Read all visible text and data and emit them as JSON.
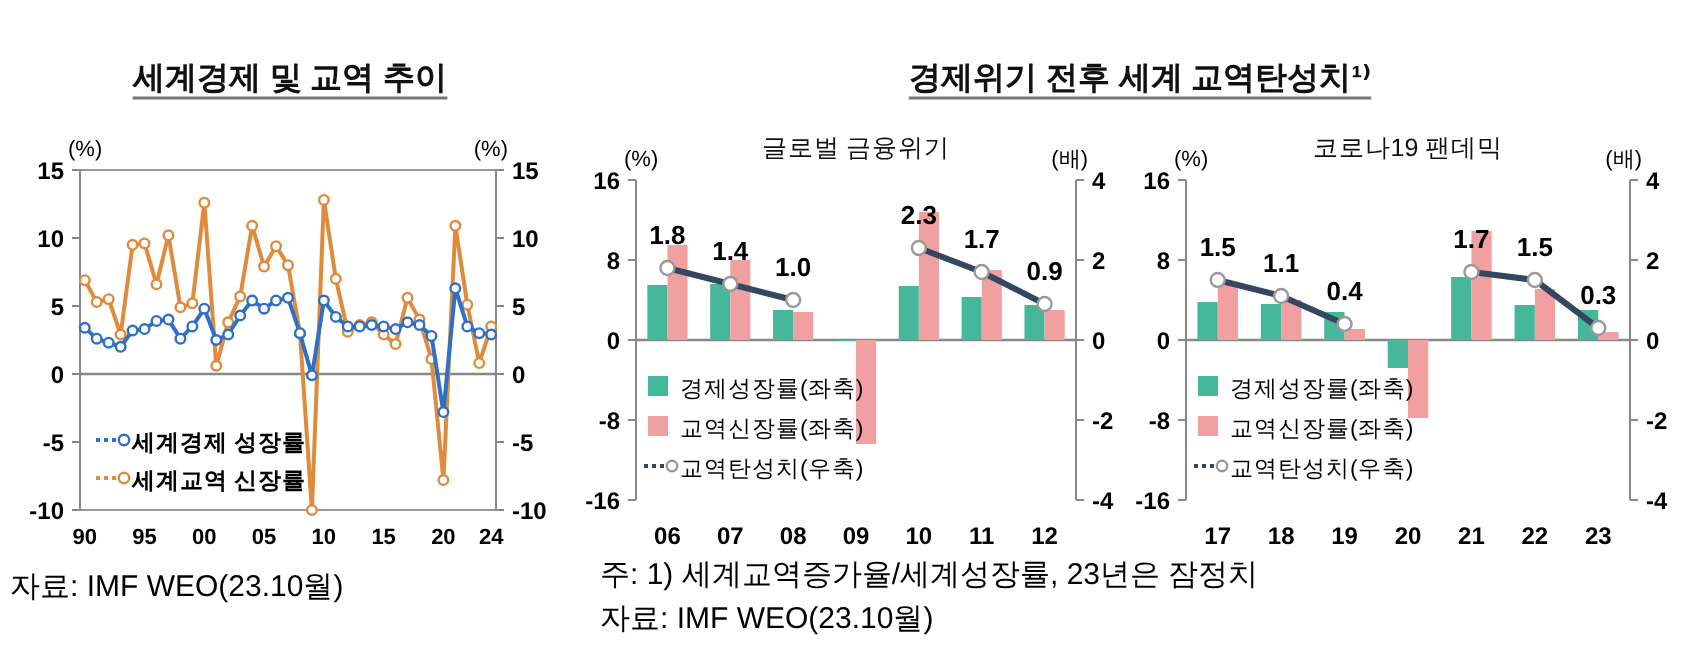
{
  "chart_data": [
    {
      "type": "line",
      "title": "세계경제 및 교역 추이",
      "ylabel": "(%)",
      "y2label": "(%)",
      "marker": "circle",
      "legend": "bottom left",
      "x": [
        1990,
        1991,
        1992,
        1993,
        1994,
        1995,
        1996,
        1997,
        1998,
        1999,
        2000,
        2001,
        2002,
        2003,
        2004,
        2005,
        2006,
        2007,
        2008,
        2009,
        2010,
        2011,
        2012,
        2013,
        2014,
        2015,
        2016,
        2017,
        2018,
        2019,
        2020,
        2021,
        2022,
        2023,
        2024
      ],
      "series": [
        {
          "name": "세계경제 성장률",
          "color": "#2f6fc4",
          "values": [
            3.4,
            2.6,
            2.3,
            2.0,
            3.2,
            3.3,
            3.9,
            4.0,
            2.6,
            3.5,
            4.8,
            2.5,
            2.9,
            4.3,
            5.4,
            4.8,
            5.4,
            5.6,
            3.0,
            -0.1,
            5.4,
            4.2,
            3.5,
            3.5,
            3.6,
            3.5,
            3.3,
            3.8,
            3.6,
            2.8,
            -2.8,
            6.3,
            3.5,
            3.0,
            2.9
          ]
        },
        {
          "name": "세계교역 신장률",
          "color": "#e08a3c",
          "values": [
            6.9,
            5.3,
            5.5,
            2.9,
            9.5,
            9.6,
            6.6,
            10.2,
            4.9,
            5.2,
            12.6,
            0.6,
            3.8,
            5.7,
            10.9,
            7.9,
            9.4,
            8.0,
            3.0,
            -10,
            12.8,
            7.0,
            3.1,
            3.6,
            3.8,
            2.9,
            2.2,
            5.6,
            4.0,
            1.1,
            -7.8,
            10.9,
            5.1,
            0.8,
            3.5
          ]
        }
      ],
      "xlim": [
        1989.6,
        2024.4
      ],
      "xticks": [
        {
          "value": 1990,
          "label": "90"
        },
        {
          "value": 1995,
          "label": "95"
        },
        {
          "value": 2000,
          "label": "00"
        },
        {
          "value": 2005,
          "label": "05"
        },
        {
          "value": 2010,
          "label": "10"
        },
        {
          "value": 2015,
          "label": "15"
        },
        {
          "value": 2020,
          "label": "20"
        },
        {
          "value": 2024,
          "label": "24"
        }
      ],
      "ylim": [
        -10,
        15
      ],
      "yticks": [
        -10,
        -5,
        0,
        5,
        10,
        15
      ],
      "y2lim": [
        -10,
        15
      ],
      "y2ticks": [
        -10,
        -5,
        0,
        5,
        10,
        15
      ],
      "annotations": [
        "자료: IMF WEO(23.10월)"
      ]
    },
    {
      "type": "bar",
      "title": "경제위기 전후 세계 교역탄성치¹⁾",
      "subtitle": "글로벌 금융위기",
      "ylabel": "(%)",
      "y2label": "(배)",
      "legend": "bottom left",
      "categories": [
        "06",
        "07",
        "08",
        "09",
        "10",
        "11",
        "12"
      ],
      "series": [
        {
          "name": "경제성장률(좌축)",
          "color": "#45b89c",
          "values": [
            5.5,
            5.6,
            3.0,
            -0.1,
            5.4,
            4.3,
            3.5
          ]
        },
        {
          "name": "교역신장률(좌축)",
          "color": "#f0a0a0",
          "values": [
            9.5,
            8.0,
            2.8,
            -10.4,
            12.8,
            7.0,
            3.0
          ]
        },
        {
          "name": "교역탄성치(우축)",
          "type": "line",
          "axis": "y2",
          "marker": "circle",
          "color": "#34475f",
          "values": [
            1.8,
            1.4,
            1.0,
            null,
            2.3,
            1.7,
            0.9
          ],
          "value_labels": [
            "1.8",
            "1.4",
            "1.0",
            null,
            "2.3",
            "1.7",
            "0.9"
          ]
        }
      ],
      "ylim": [
        -16,
        16
      ],
      "yticks": [
        -16,
        -8,
        0,
        8,
        16
      ],
      "y2lim": [
        -4,
        4
      ],
      "y2ticks": [
        -4,
        -2,
        0,
        2,
        4
      ],
      "annotations": [
        "주: 1) 세계교역증가율/세계성장률, 23년은 잠정치",
        "자료: IMF WEO(23.10월)"
      ]
    },
    {
      "type": "bar",
      "subtitle": "코로나19 팬데믹",
      "ylabel": "(%)",
      "y2label": "(배)",
      "legend": "bottom left",
      "categories": [
        "17",
        "18",
        "19",
        "20",
        "21",
        "22",
        "23"
      ],
      "series": [
        {
          "name": "경제성장률(좌축)",
          "color": "#45b89c",
          "values": [
            3.8,
            3.6,
            2.8,
            -2.8,
            6.3,
            3.5,
            3.0
          ]
        },
        {
          "name": "교역신장률(좌축)",
          "color": "#f0a0a0",
          "values": [
            5.6,
            4.0,
            1.1,
            -7.8,
            10.9,
            5.1,
            0.8
          ]
        },
        {
          "name": "교역탄성치(우축)",
          "type": "line",
          "axis": "y2",
          "marker": "circle",
          "color": "#34475f",
          "values": [
            1.5,
            1.1,
            0.4,
            null,
            1.7,
            1.5,
            0.3
          ],
          "value_labels": [
            "1.5",
            "1.1",
            "0.4",
            null,
            "1.7",
            "1.5",
            "0.3"
          ]
        }
      ],
      "ylim": [
        -16,
        16
      ],
      "yticks": [
        -16,
        -8,
        0,
        8,
        16
      ],
      "y2lim": [
        -4,
        4
      ],
      "y2ticks": [
        -4,
        -2,
        0,
        2,
        4
      ]
    }
  ]
}
